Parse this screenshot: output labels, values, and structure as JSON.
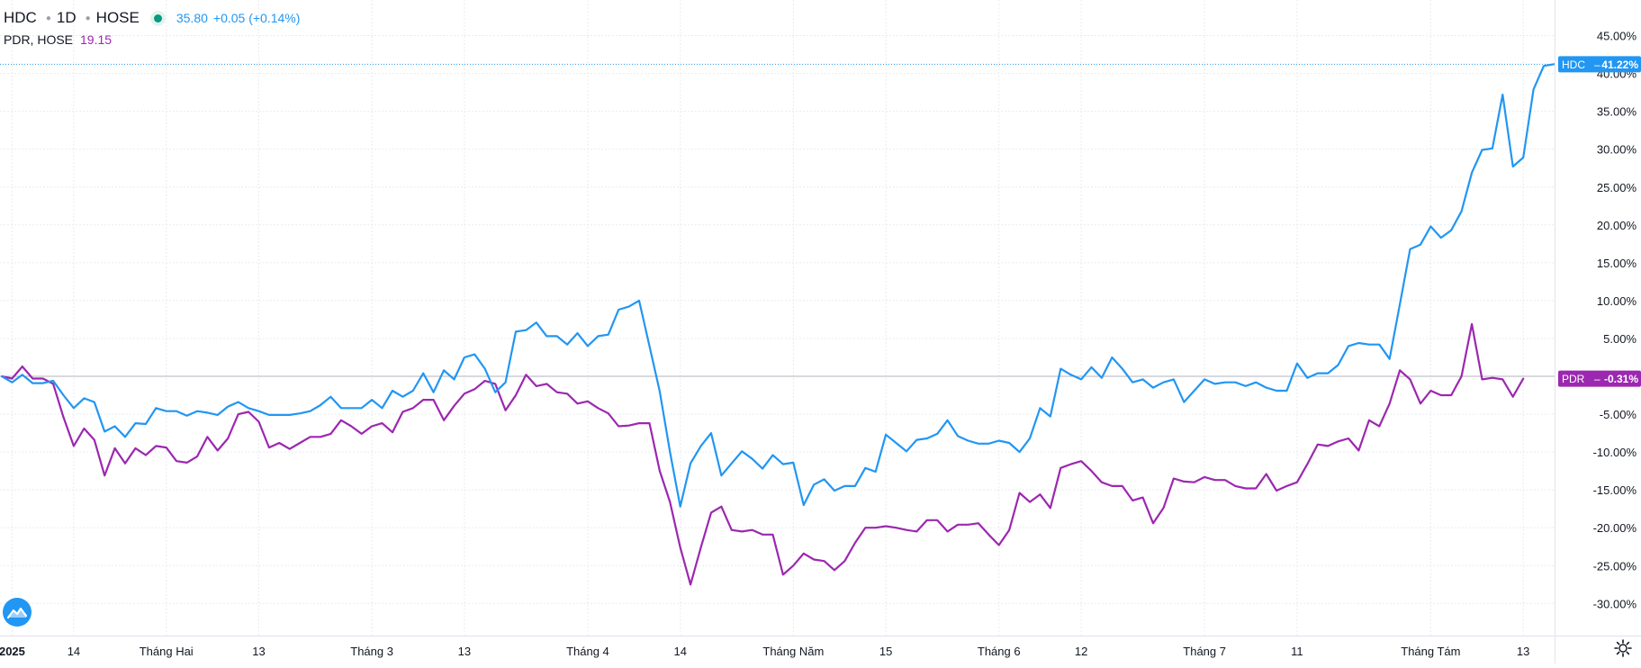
{
  "legend": {
    "hdc_symbol": "HDC",
    "hdc_interval": "1D",
    "hdc_exchange": "HOSE",
    "hdc_price": "35.80",
    "hdc_change": "+0.05 (+0.14%)",
    "pdr_label": "PDR, HOSE",
    "pdr_price": "19.15"
  },
  "colors": {
    "hdc": "#2196f3",
    "pdr": "#9c27b0",
    "grid": "#e8ebf0",
    "text": "#131722"
  },
  "chart_data": {
    "type": "line",
    "title": "",
    "xlabel": "",
    "ylabel": "",
    "ylim": [
      -32.5,
      47.5
    ],
    "y_ticks": [
      45,
      40,
      35,
      30,
      25,
      20,
      15,
      10,
      5,
      0,
      -5,
      -10,
      -15,
      -20,
      -25,
      -30
    ],
    "y_tick_labels": [
      "45.00%",
      "40.00%",
      "35.00%",
      "30.00%",
      "25.00%",
      "20.00%",
      "15.00%",
      "10.00%",
      "5.00%",
      "",
      "-5.00%",
      "-10.00%",
      "-15.00%",
      "-20.00%",
      "-25.00%",
      "-30.00%"
    ],
    "x_ticks": [
      {
        "label": "2025",
        "index": 1,
        "bold": true
      },
      {
        "label": "14",
        "index": 7
      },
      {
        "label": "Tháng Hai",
        "index": 16
      },
      {
        "label": "13",
        "index": 25
      },
      {
        "label": "Tháng 3",
        "index": 36
      },
      {
        "label": "13",
        "index": 45
      },
      {
        "label": "Tháng 4",
        "index": 57
      },
      {
        "label": "14",
        "index": 66
      },
      {
        "label": "Tháng Năm",
        "index": 77
      },
      {
        "label": "15",
        "index": 86
      },
      {
        "label": "Tháng 6",
        "index": 97
      },
      {
        "label": "12",
        "index": 105
      },
      {
        "label": "Tháng 7",
        "index": 117
      },
      {
        "label": "11",
        "index": 126
      },
      {
        "label": "Tháng Tám",
        "index": 139
      },
      {
        "label": "13",
        "index": 148
      }
    ],
    "grid": true,
    "legend_position": "top-left",
    "series": [
      {
        "name": "HDC",
        "last_label": "41.22%",
        "values": [
          0,
          -0.8,
          0.2,
          -0.9,
          -0.9,
          -0.6,
          -2.5,
          -4.2,
          -2.9,
          -3.4,
          -7.3,
          -6.6,
          -8.0,
          -6.2,
          -6.3,
          -4.2,
          -4.6,
          -4.6,
          -5.2,
          -4.6,
          -4.8,
          -5.1,
          -4.0,
          -3.4,
          -4.2,
          -4.6,
          -5.1,
          -5.1,
          -5.1,
          -4.9,
          -4.6,
          -3.8,
          -2.7,
          -4.2,
          -4.2,
          -4.2,
          -3.1,
          -4.2,
          -1.9,
          -2.7,
          -1.9,
          0.4,
          -2.1,
          0.8,
          -0.4,
          2.5,
          2.9,
          1.0,
          -2.1,
          -0.8,
          5.9,
          6.1,
          7.1,
          5.3,
          5.3,
          4.2,
          5.7,
          4.0,
          5.3,
          5.5,
          8.8,
          9.2,
          10.0,
          4.0,
          -2.0,
          -10.0,
          -17.2,
          -11.5,
          -9.2,
          -7.5,
          -13.1,
          -11.5,
          -9.9,
          -10.9,
          -12.2,
          -10.4,
          -11.6,
          -11.4,
          -17.0,
          -14.3,
          -13.6,
          -15.1,
          -14.5,
          -14.5,
          -12.1,
          -12.6,
          -7.7,
          -8.8,
          -9.9,
          -8.4,
          -8.2,
          -7.6,
          -5.8,
          -7.9,
          -8.5,
          -8.9,
          -8.9,
          -8.5,
          -8.8,
          -10.0,
          -8.2,
          -4.2,
          -5.3,
          1.0,
          0.2,
          -0.4,
          1.2,
          -0.2,
          2.5,
          1.0,
          -0.8,
          -0.4,
          -1.5,
          -0.8,
          -0.4,
          -3.4,
          -1.9,
          -0.4,
          -1.0,
          -0.8,
          -0.8,
          -1.3,
          -0.8,
          -1.5,
          -1.9,
          -1.9,
          1.7,
          -0.2,
          0.4,
          0.4,
          1.5,
          4.0,
          4.4,
          4.2,
          4.2,
          2.3,
          9.5,
          16.8,
          17.4,
          19.8,
          18.3,
          19.3,
          21.8,
          26.9,
          29.9,
          30.1,
          37.2,
          27.7,
          28.9,
          37.9,
          41.0,
          41.22
        ]
      },
      {
        "name": "PDR",
        "last_label": "-0.31%",
        "values": [
          0,
          -0.3,
          1.3,
          -0.3,
          -0.3,
          -1.0,
          -5.4,
          -9.2,
          -6.9,
          -8.4,
          -13.1,
          -9.5,
          -11.5,
          -9.5,
          -10.4,
          -9.2,
          -9.4,
          -11.2,
          -11.4,
          -10.6,
          -8.0,
          -9.8,
          -8.2,
          -5.0,
          -4.7,
          -6.0,
          -9.4,
          -8.8,
          -9.6,
          -8.8,
          -8.0,
          -8.0,
          -7.6,
          -5.8,
          -6.6,
          -7.6,
          -6.6,
          -6.2,
          -7.4,
          -4.7,
          -4.2,
          -3.1,
          -3.1,
          -5.8,
          -3.9,
          -2.3,
          -1.7,
          -0.6,
          -1.0,
          -4.5,
          -2.5,
          0.2,
          -1.3,
          -1.0,
          -2.1,
          -2.3,
          -3.6,
          -3.3,
          -4.2,
          -4.9,
          -6.6,
          -6.5,
          -6.2,
          -6.2,
          -12.5,
          -16.6,
          -22.6,
          -27.5,
          -22.6,
          -18.0,
          -17.2,
          -20.3,
          -20.5,
          -20.3,
          -20.9,
          -20.9,
          -26.2,
          -25.0,
          -23.4,
          -24.2,
          -24.4,
          -25.6,
          -24.4,
          -22.0,
          -20.0,
          -20.0,
          -19.8,
          -20.0,
          -20.3,
          -20.5,
          -19.0,
          -19.0,
          -20.5,
          -19.6,
          -19.6,
          -19.4,
          -20.9,
          -22.3,
          -20.3,
          -15.4,
          -16.6,
          -15.6,
          -17.4,
          -12.1,
          -11.6,
          -11.2,
          -12.5,
          -14.0,
          -14.5,
          -14.5,
          -16.4,
          -16.0,
          -19.4,
          -17.4,
          -13.5,
          -13.9,
          -14.0,
          -13.3,
          -13.7,
          -13.7,
          -14.5,
          -14.8,
          -14.8,
          -12.9,
          -15.1,
          -14.5,
          -14.0,
          -11.6,
          -9.0,
          -9.2,
          -8.6,
          -8.2,
          -9.8,
          -5.8,
          -6.6,
          -3.6,
          0.8,
          -0.4,
          -3.6,
          -1.9,
          -2.5,
          -2.5,
          0.0,
          6.9,
          -0.4,
          -0.2,
          -0.4,
          -2.7,
          -0.31
        ]
      }
    ]
  }
}
